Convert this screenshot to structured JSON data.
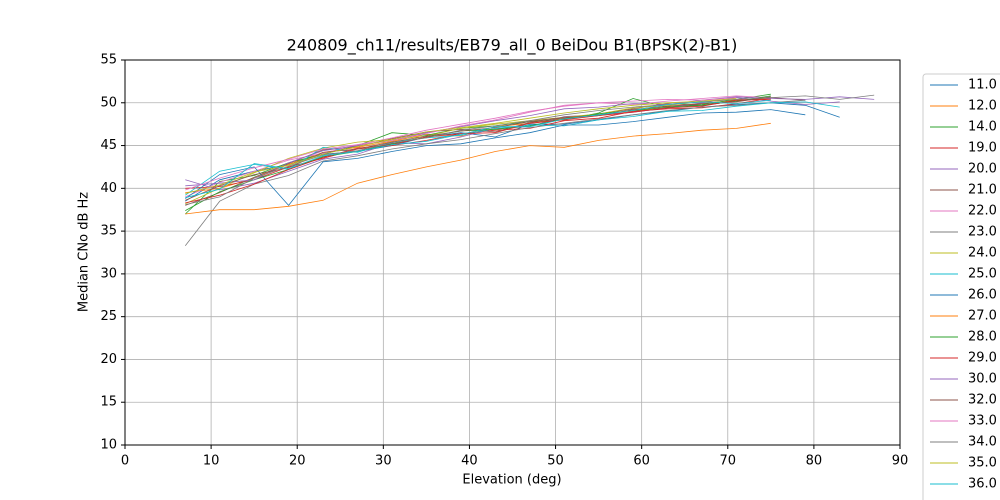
{
  "chart_data": {
    "type": "line",
    "title": "240809_ch11/results/EB79_all_0 BeiDou B1(BPSK(2)-B1)",
    "x_label": "Elevation (deg)",
    "y_label": "Median CNo dB Hz",
    "xlim": [
      0,
      90
    ],
    "ylim": [
      10,
      55
    ],
    "xticks": [
      0,
      10,
      20,
      30,
      40,
      50,
      60,
      70,
      80,
      90
    ],
    "yticks": [
      10,
      15,
      20,
      25,
      30,
      35,
      40,
      45,
      50,
      55
    ],
    "grid": true,
    "legend": "right",
    "x": [
      7,
      11,
      15,
      19,
      23,
      27,
      31,
      35,
      39,
      43,
      47,
      51,
      55,
      59,
      63,
      67,
      71,
      75,
      79,
      83,
      87
    ],
    "series": [
      {
        "name": "11.0",
        "color": "#1f77b4",
        "values": [
          38.5,
          41,
          42,
          42.8,
          44,
          44.3,
          45,
          46,
          46.5,
          46,
          47.5,
          47.5,
          48,
          48.6,
          49,
          49.5,
          49.8,
          50,
          49.7,
          48.3,
          null
        ]
      },
      {
        "name": "12.0",
        "color": "#ff7f0e",
        "values": [
          39.5,
          40,
          41.2,
          42.8,
          44.2,
          44.8,
          45.5,
          46.3,
          46.1,
          47.2,
          47.6,
          48.1,
          48.5,
          49,
          49.5,
          49.9,
          50.3,
          50.5,
          null,
          null,
          null
        ]
      },
      {
        "name": "14.0",
        "color": "#2ca02c",
        "values": [
          37,
          40.8,
          41.5,
          43,
          44,
          45,
          46.5,
          46.2,
          47,
          47.3,
          47.8,
          48,
          48.8,
          50.5,
          49.5,
          49.8,
          50.4,
          51,
          null,
          null,
          null
        ]
      },
      {
        "name": "19.0",
        "color": "#d62728",
        "values": [
          40,
          40.2,
          41,
          42.5,
          43.5,
          44.6,
          45,
          45.6,
          46.4,
          46.8,
          47,
          47.9,
          48.2,
          49,
          49.3,
          49.4,
          49.9,
          50.5,
          null,
          null,
          null
        ]
      },
      {
        "name": "20.0",
        "color": "#9467bd",
        "values": [
          41,
          39.8,
          40.6,
          42,
          43.4,
          44,
          45.3,
          45.2,
          46,
          47,
          47.2,
          48.4,
          48.6,
          48.9,
          49.4,
          50,
          50.6,
          50.2,
          49.8,
          50.1,
          null
        ]
      },
      {
        "name": "21.0",
        "color": "#8c564b",
        "values": [
          38,
          39.5,
          41.3,
          42.9,
          44.5,
          44.9,
          45.8,
          46.6,
          46.9,
          46.6,
          47.7,
          48.2,
          48.7,
          49.3,
          49.9,
          49.7,
          50.2,
          50.6,
          50.3,
          null,
          null
        ]
      },
      {
        "name": "22.0",
        "color": "#e377c2",
        "values": [
          39,
          40.7,
          42,
          43.3,
          44.1,
          45.1,
          45.9,
          46.8,
          47.5,
          48.2,
          49,
          49.6,
          50,
          49.8,
          50.2,
          50.5,
          50.8,
          50.6,
          null,
          null,
          null
        ]
      },
      {
        "name": "23.0",
        "color": "#7f7f7f",
        "values": [
          33.3,
          38.5,
          40.5,
          41.5,
          43.2,
          43.8,
          44.6,
          45.2,
          45.7,
          46.4,
          47.1,
          47.6,
          48.1,
          48.6,
          49.1,
          49.5,
          49.7,
          50,
          50.3,
          null,
          null
        ]
      },
      {
        "name": "24.0",
        "color": "#bcbd22",
        "values": [
          38.2,
          40,
          41.8,
          43.5,
          44.7,
          45.4,
          45.7,
          46.1,
          47,
          47.5,
          47.9,
          48.3,
          48.7,
          49.4,
          49.7,
          50.1,
          50.4,
          null,
          null,
          null,
          null
        ]
      },
      {
        "name": "25.0",
        "color": "#17becf",
        "values": [
          39.2,
          42,
          42.8,
          42.2,
          44.8,
          44.2,
          45.4,
          45.9,
          46.2,
          47,
          47.4,
          47.3,
          48,
          48.4,
          49,
          49.1,
          49.6,
          50,
          50.1,
          49.5,
          null
        ]
      },
      {
        "name": "26.0",
        "color": "#1f77b4",
        "values": [
          38.8,
          41.6,
          42.5,
          38,
          43.1,
          43.5,
          44.3,
          45,
          45.2,
          45.9,
          46.5,
          47.4,
          47.4,
          47.8,
          48.3,
          48.8,
          48.9,
          49.2,
          48.6,
          null,
          null
        ]
      },
      {
        "name": "27.0",
        "color": "#ff7f0e",
        "values": [
          37,
          37.5,
          37.5,
          37.9,
          38.6,
          40.6,
          41.6,
          42.5,
          43.3,
          44.3,
          45,
          44.8,
          45.6,
          46.1,
          46.4,
          46.8,
          47,
          47.6,
          null,
          null,
          null
        ]
      },
      {
        "name": "28.0",
        "color": "#2ca02c",
        "values": [
          37.4,
          39.6,
          41,
          42.2,
          43.7,
          44.3,
          45.2,
          46,
          46.7,
          46.9,
          47.3,
          48.1,
          48.7,
          49.1,
          49.5,
          49.7,
          50.2,
          50.8,
          null,
          null,
          null
        ]
      },
      {
        "name": "29.0",
        "color": "#d62728",
        "values": [
          38.3,
          39.2,
          40.5,
          42.2,
          43.6,
          44.7,
          45.1,
          46,
          46.4,
          46.5,
          47.6,
          48,
          48.5,
          48.9,
          49.4,
          49.6,
          50.3,
          50.4,
          null,
          null,
          null
        ]
      },
      {
        "name": "30.0",
        "color": "#9467bd",
        "values": [
          40.3,
          40.6,
          41,
          43,
          44.4,
          45,
          45.6,
          46.5,
          47.2,
          47.9,
          48.5,
          49.3,
          49.5,
          49.9,
          49.8,
          50.3,
          50.7,
          50.5,
          50.4,
          50.7,
          50.4
        ]
      },
      {
        "name": "32.0",
        "color": "#8c564b",
        "values": [
          38.6,
          40.3,
          41.6,
          42.4,
          44.2,
          44.6,
          45.4,
          46.1,
          46.7,
          47.1,
          47.8,
          48.3,
          48.5,
          49.2,
          49.6,
          49.9,
          50.1,
          50.7,
          null,
          null,
          null
        ]
      },
      {
        "name": "33.0",
        "color": "#e377c2",
        "values": [
          39.8,
          41.2,
          42.4,
          43.4,
          44.6,
          45.1,
          45.6,
          46.4,
          47.3,
          48,
          48.9,
          49.7,
          50,
          50.2,
          50.4,
          50.3,
          50.6,
          null,
          null,
          null,
          null
        ]
      },
      {
        "name": "34.0",
        "color": "#7f7f7f",
        "values": [
          38.1,
          39,
          41.2,
          42.6,
          43.9,
          44.4,
          45.3,
          45.9,
          46.8,
          47.3,
          47.9,
          48.6,
          49.1,
          49.5,
          49.8,
          50.1,
          50.4,
          50.6,
          50.8,
          50.4,
          50.9
        ]
      },
      {
        "name": "35.0",
        "color": "#bcbd22",
        "values": [
          39.4,
          40.4,
          41.9,
          42.7,
          44,
          44.9,
          45.7,
          46.6,
          47.1,
          47.6,
          48.2,
          48.8,
          49.3,
          49.7,
          50,
          50.2,
          50.5,
          null,
          null,
          null,
          null
        ]
      },
      {
        "name": "36.0",
        "color": "#17becf",
        "values": [
          38.9,
          39.9,
          42.9,
          42.3,
          43.8,
          44.3,
          45.1,
          45.5,
          46.3,
          47.2,
          47.2,
          48.1,
          48.6,
          49.1,
          49.8,
          50.1,
          49.9,
          50.3,
          null,
          null,
          null
        ]
      }
    ]
  }
}
